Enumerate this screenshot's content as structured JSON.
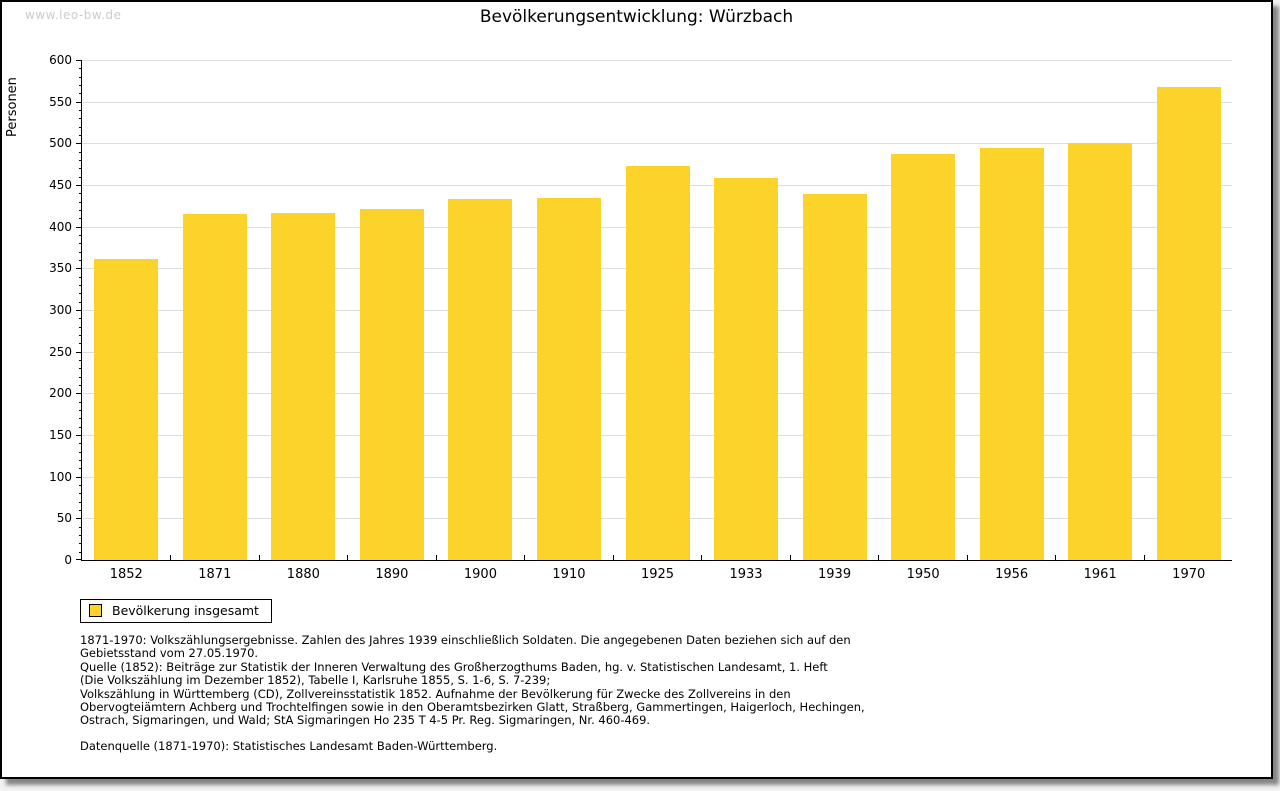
{
  "watermark": "www.leo-bw.de",
  "title": "Bevölkerungsentwicklung: Würzbach",
  "legend": {
    "label": "Bevölkerung insgesamt",
    "swatch_color": "#FCD32B"
  },
  "colors": {
    "bar": "#FCD32B",
    "grid": "#dddddd",
    "axis": "#000000",
    "watermark": "#cccccc"
  },
  "chart_data": {
    "type": "bar",
    "title": "Bevölkerungsentwicklung: Würzbach",
    "ylabel": "Personen",
    "xlabel": "",
    "categories": [
      "1852",
      "1871",
      "1880",
      "1890",
      "1900",
      "1910",
      "1925",
      "1933",
      "1939",
      "1950",
      "1956",
      "1961",
      "1970"
    ],
    "values": [
      361,
      415,
      417,
      421,
      433,
      435,
      473,
      459,
      439,
      487,
      494,
      500,
      568
    ],
    "series_name": "Bevölkerung insgesamt",
    "ylim": [
      0,
      600
    ],
    "ytick_step": 50,
    "yminor_step": 10,
    "grid": true,
    "legend_position": "bottom-left",
    "bar_color": "#FCD32B"
  },
  "footer": {
    "notes": [
      "1871-1970: Volkszählungsergebnisse. Zahlen des Jahres 1939 einschließlich Soldaten. Die angegebenen Daten beziehen sich auf den",
      "Gebietsstand vom 27.05.1970.",
      "Quelle (1852): Beiträge zur Statistik der Inneren Verwaltung des Großherzogthums Baden, hg. v. Statistischen Landesamt, 1. Heft",
      "(Die Volkszählung im Dezember 1852), Tabelle I, Karlsruhe 1855, S. 1-6, S. 7-239;",
      "Volkszählung in Württemberg (CD), Zollvereinsstatistik 1852. Aufnahme der Bevölkerung für Zwecke des Zollvereins in den",
      "Obervogteiämtern Achberg und Trochtelfingen sowie in den Oberamtsbezirken Glatt, Straßberg, Gammertingen, Haigerloch, Hechingen,",
      "Ostrach, Sigmaringen, und Wald; StA Sigmaringen Ho 235 T 4-5 Pr. Reg. Sigmaringen, Nr. 460-469."
    ],
    "datenquelle": "Datenquelle (1871-1970): Statistisches Landesamt Baden-Württemberg."
  }
}
